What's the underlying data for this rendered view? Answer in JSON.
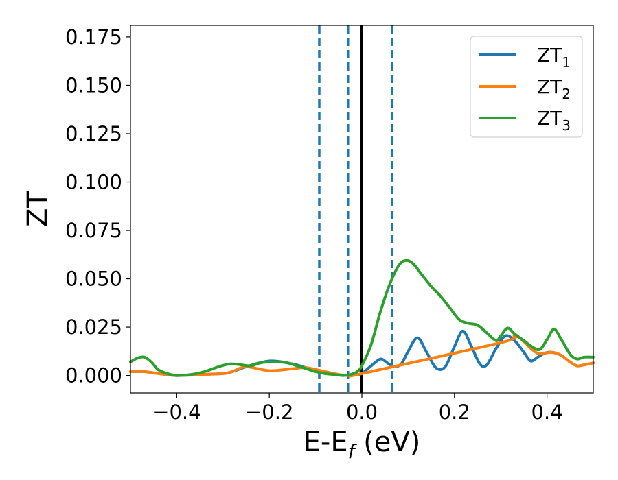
{
  "chart_data": {
    "type": "line",
    "xlabel": {
      "base": "E-E",
      "sub": "f",
      "unit": " (eV)"
    },
    "ylabel": "ZT",
    "xlim": [
      -0.5,
      0.5
    ],
    "ylim": [
      -0.009,
      0.181
    ],
    "x_ticks": [
      -0.4,
      -0.2,
      0.0,
      0.2,
      0.4
    ],
    "x_tick_labels": [
      "−0.4",
      "−0.2",
      "0.0",
      "0.2",
      "0.4"
    ],
    "y_ticks": [
      0.0,
      0.025,
      0.05,
      0.075,
      0.1,
      0.125,
      0.15,
      0.175
    ],
    "y_tick_labels": [
      "0.000",
      "0.025",
      "0.050",
      "0.075",
      "0.100",
      "0.125",
      "0.150",
      "0.175"
    ],
    "grid": false,
    "legend_position": "top-right",
    "vertical_lines": [
      {
        "x": -0.092,
        "style": "dashed",
        "color": "#1f77b4"
      },
      {
        "x": -0.03,
        "style": "dashed",
        "color": "#1f77b4"
      },
      {
        "x": 0.0,
        "style": "solid",
        "color": "#000000"
      },
      {
        "x": 0.065,
        "style": "dashed",
        "color": "#1f77b4"
      }
    ],
    "series": [
      {
        "name": "ZT",
        "sub": "1",
        "color": "#1f77b4",
        "points": [
          [
            -0.5,
            0.002
          ],
          [
            -0.47,
            0.002
          ],
          [
            -0.44,
            0.001
          ],
          [
            -0.4,
            0.0
          ],
          [
            -0.35,
            0.0005
          ],
          [
            -0.3,
            0.001
          ],
          [
            -0.28,
            0.002
          ],
          [
            -0.25,
            0.0045
          ],
          [
            -0.2,
            0.0075
          ],
          [
            -0.15,
            0.006
          ],
          [
            -0.12,
            0.004
          ],
          [
            -0.08,
            0.002
          ],
          [
            -0.05,
            0.0005
          ],
          [
            -0.03,
            0.0
          ],
          [
            -0.01,
            0.0005
          ],
          [
            0.0,
            0.001
          ],
          [
            0.02,
            0.005
          ],
          [
            0.04,
            0.0085
          ],
          [
            0.055,
            0.0065
          ],
          [
            0.07,
            0.0045
          ],
          [
            0.085,
            0.006
          ],
          [
            0.1,
            0.0125
          ],
          [
            0.12,
            0.0195
          ],
          [
            0.14,
            0.012
          ],
          [
            0.16,
            0.004
          ],
          [
            0.18,
            0.0045
          ],
          [
            0.2,
            0.015
          ],
          [
            0.218,
            0.023
          ],
          [
            0.235,
            0.016
          ],
          [
            0.255,
            0.006
          ],
          [
            0.27,
            0.0055
          ],
          [
            0.29,
            0.014
          ],
          [
            0.31,
            0.0205
          ],
          [
            0.33,
            0.018
          ],
          [
            0.35,
            0.012
          ],
          [
            0.365,
            0.0075
          ],
          [
            0.38,
            0.0095
          ],
          [
            0.395,
            0.0115
          ],
          [
            0.41,
            0.012
          ],
          [
            0.43,
            0.0105
          ],
          [
            0.45,
            0.007
          ],
          [
            0.465,
            0.005
          ],
          [
            0.48,
            0.0055
          ],
          [
            0.5,
            0.0065
          ]
        ]
      },
      {
        "name": "ZT",
        "sub": "2",
        "color": "#ff7f0e",
        "points": [
          [
            -0.5,
            0.002
          ],
          [
            -0.47,
            0.002
          ],
          [
            -0.44,
            0.001
          ],
          [
            -0.4,
            0.0
          ],
          [
            -0.35,
            0.0005
          ],
          [
            -0.3,
            0.001
          ],
          [
            -0.28,
            0.002
          ],
          [
            -0.25,
            0.0045
          ],
          [
            -0.2,
            0.0025
          ],
          [
            -0.15,
            0.0035
          ],
          [
            -0.12,
            0.004
          ],
          [
            -0.08,
            0.002
          ],
          [
            -0.05,
            0.0005
          ],
          [
            -0.03,
            0.0
          ],
          [
            -0.01,
            0.0005
          ],
          [
            0.0,
            0.001
          ],
          [
            0.3,
            0.017
          ],
          [
            0.33,
            0.0205
          ],
          [
            0.35,
            0.0175
          ],
          [
            0.365,
            0.014
          ],
          [
            0.38,
            0.0115
          ],
          [
            0.395,
            0.0115
          ],
          [
            0.41,
            0.012
          ],
          [
            0.43,
            0.0105
          ],
          [
            0.45,
            0.007
          ],
          [
            0.465,
            0.005
          ],
          [
            0.48,
            0.0055
          ],
          [
            0.5,
            0.0065
          ]
        ]
      },
      {
        "name": "ZT",
        "sub": "3",
        "color": "#2ca02c",
        "points": [
          [
            -0.5,
            0.007
          ],
          [
            -0.485,
            0.009
          ],
          [
            -0.47,
            0.0095
          ],
          [
            -0.455,
            0.007
          ],
          [
            -0.44,
            0.003
          ],
          [
            -0.42,
            0.001
          ],
          [
            -0.4,
            0.0
          ],
          [
            -0.37,
            0.0005
          ],
          [
            -0.34,
            0.002
          ],
          [
            -0.31,
            0.0045
          ],
          [
            -0.285,
            0.006
          ],
          [
            -0.26,
            0.0055
          ],
          [
            -0.24,
            0.005
          ],
          [
            -0.22,
            0.0065
          ],
          [
            -0.2,
            0.007
          ],
          [
            -0.18,
            0.007
          ],
          [
            -0.16,
            0.0065
          ],
          [
            -0.14,
            0.005
          ],
          [
            -0.12,
            0.0035
          ],
          [
            -0.1,
            0.002
          ],
          [
            -0.08,
            0.001
          ],
          [
            -0.06,
            0.0005
          ],
          [
            -0.04,
            0.0
          ],
          [
            -0.025,
            0.0005
          ],
          [
            -0.01,
            0.002
          ],
          [
            0.0,
            0.005
          ],
          [
            0.02,
            0.016
          ],
          [
            0.04,
            0.033
          ],
          [
            0.06,
            0.047
          ],
          [
            0.08,
            0.057
          ],
          [
            0.095,
            0.0595
          ],
          [
            0.11,
            0.058
          ],
          [
            0.13,
            0.052
          ],
          [
            0.15,
            0.046
          ],
          [
            0.17,
            0.041
          ],
          [
            0.19,
            0.035
          ],
          [
            0.21,
            0.029
          ],
          [
            0.23,
            0.027
          ],
          [
            0.25,
            0.026
          ],
          [
            0.27,
            0.022
          ],
          [
            0.29,
            0.018
          ],
          [
            0.3,
            0.0205
          ],
          [
            0.315,
            0.0245
          ],
          [
            0.33,
            0.0215
          ],
          [
            0.35,
            0.018
          ],
          [
            0.37,
            0.0145
          ],
          [
            0.385,
            0.0135
          ],
          [
            0.4,
            0.0185
          ],
          [
            0.415,
            0.024
          ],
          [
            0.43,
            0.019
          ],
          [
            0.45,
            0.011
          ],
          [
            0.465,
            0.0085
          ],
          [
            0.48,
            0.0095
          ],
          [
            0.5,
            0.0095
          ]
        ]
      }
    ]
  }
}
